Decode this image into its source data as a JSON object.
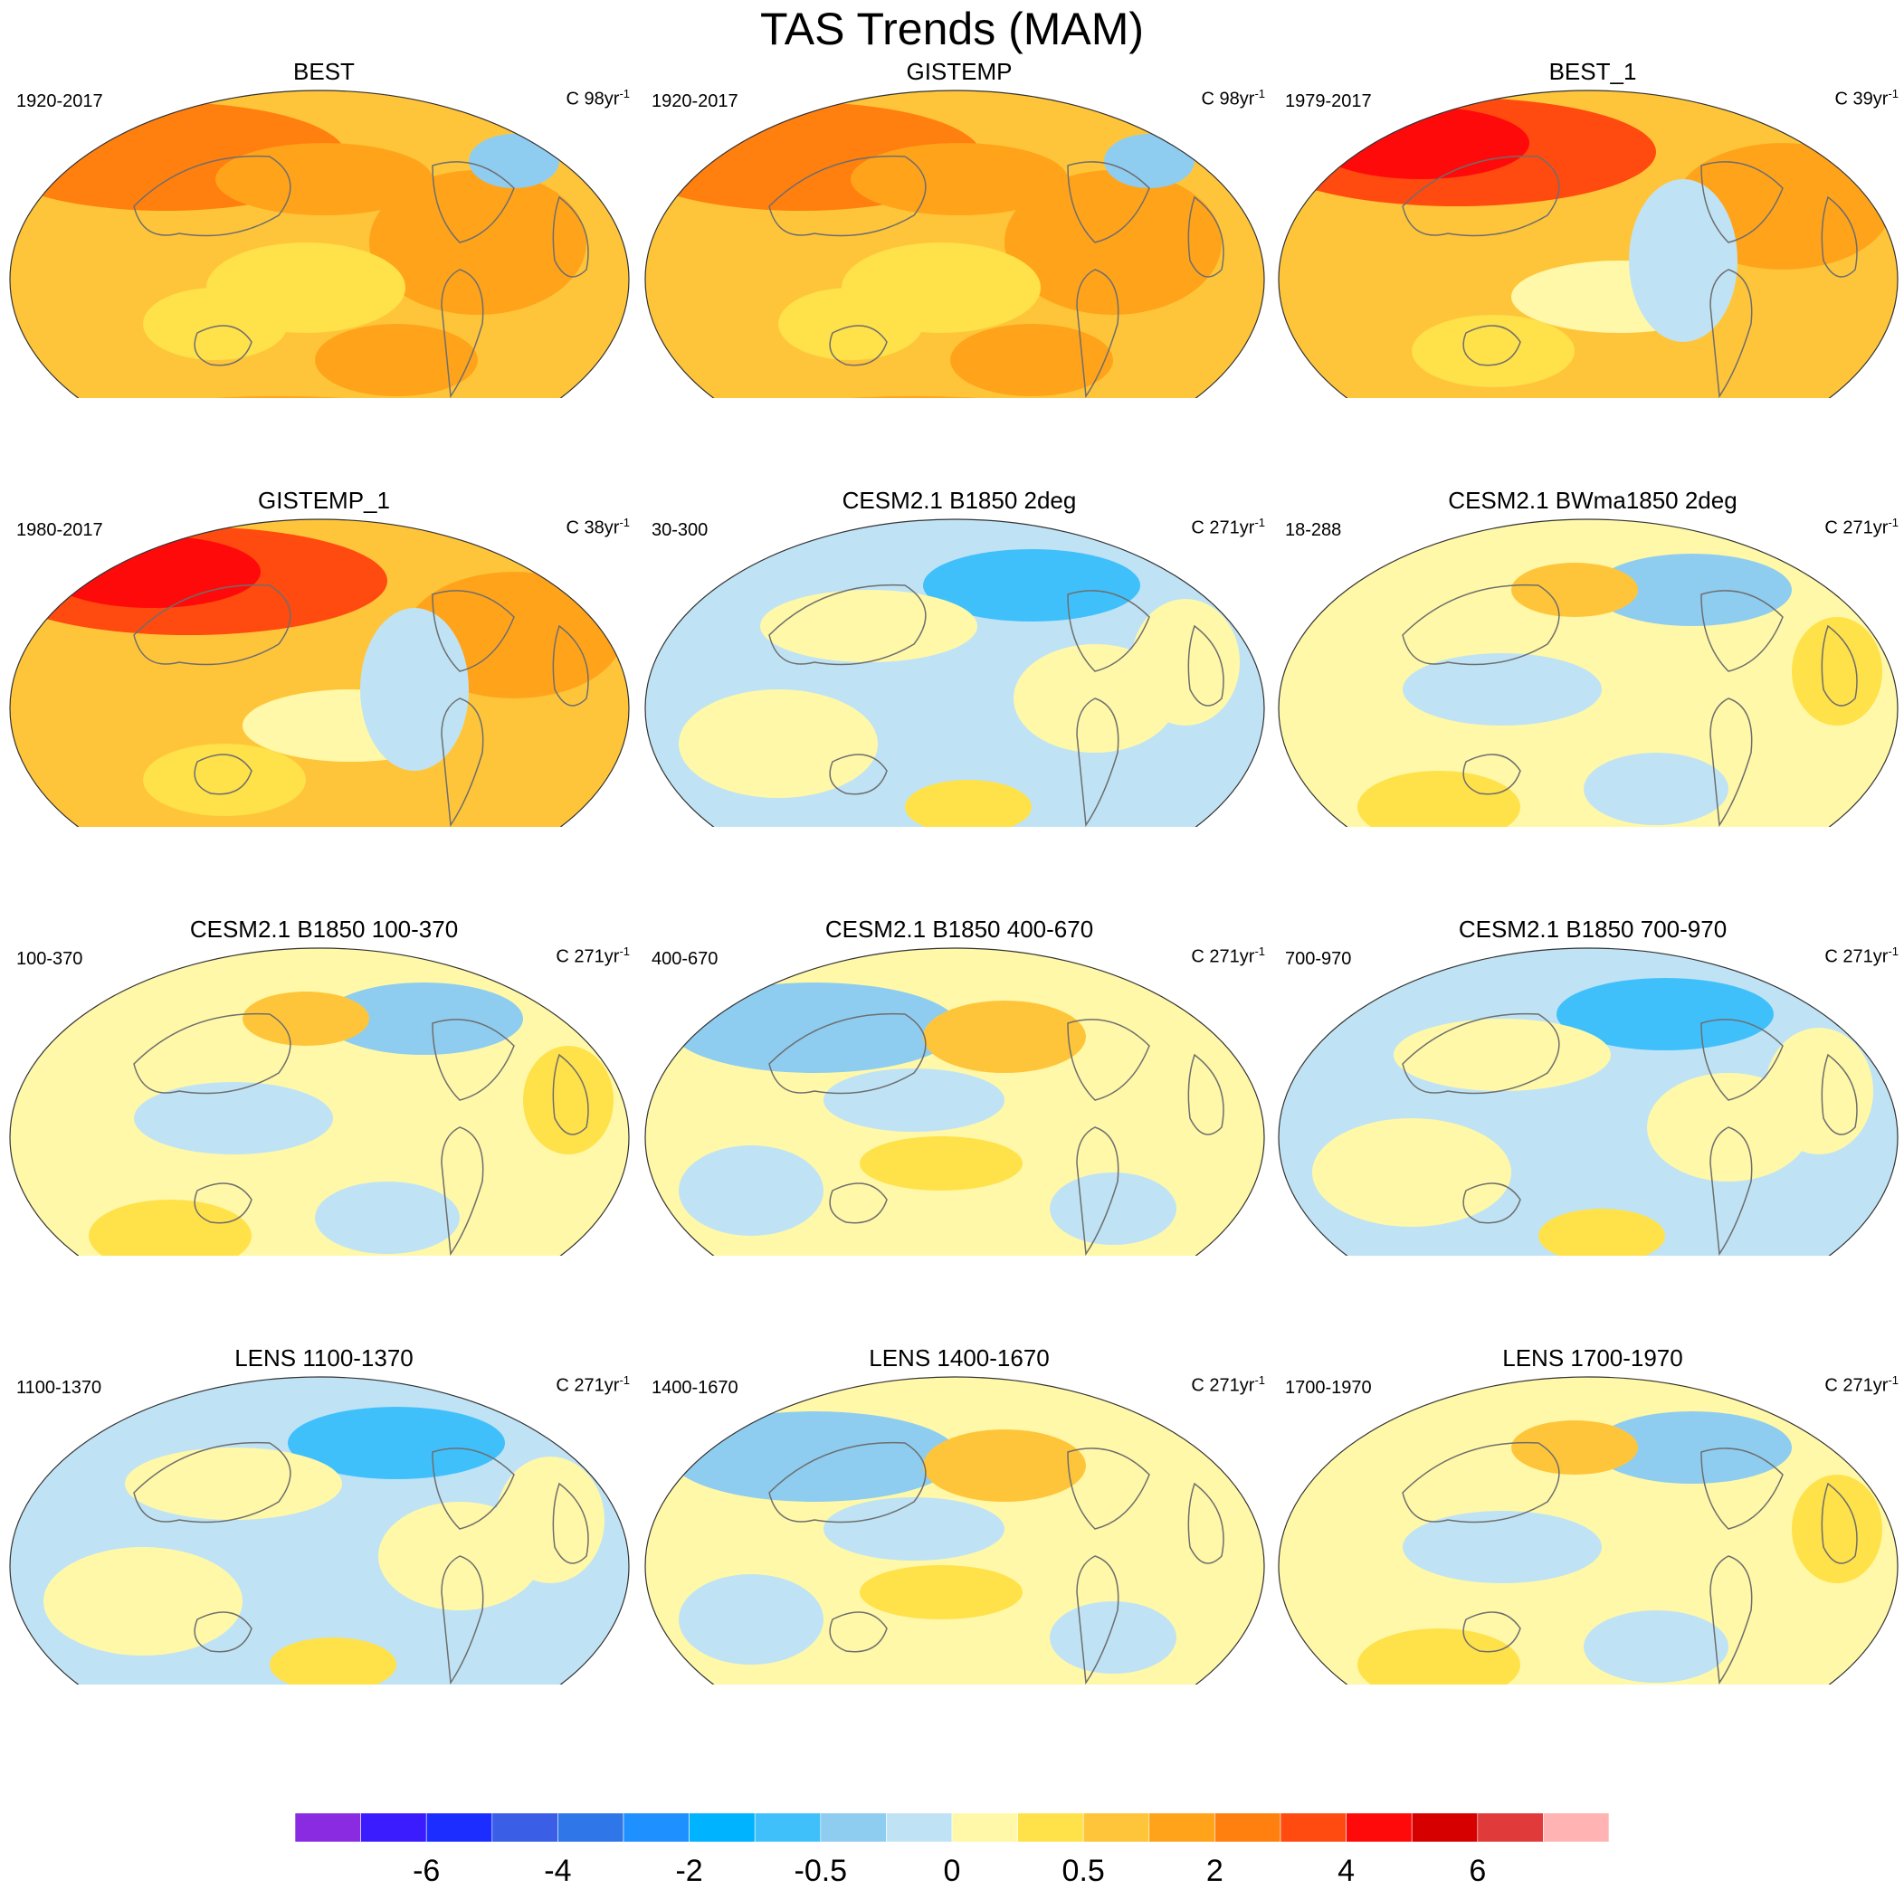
{
  "title": "TAS Trends (MAM)",
  "panels": [
    {
      "title": "BEST",
      "period": "1920-2017",
      "units_prefix": "C 98yr",
      "units_sup": "-1",
      "pattern": "warm_obs",
      "polar_hot": true
    },
    {
      "title": "GISTEMP",
      "period": "1920-2017",
      "units_prefix": "C 98yr",
      "units_sup": "-1",
      "pattern": "warm_obs",
      "polar_hot": true
    },
    {
      "title": "BEST_1",
      "period": "1979-2017",
      "units_prefix": "C 39yr",
      "units_sup": "-1",
      "pattern": "warm_recent",
      "polar_hot": false
    },
    {
      "title": "GISTEMP_1",
      "period": "1980-2017",
      "units_prefix": "C 38yr",
      "units_sup": "-1",
      "pattern": "warm_recent",
      "polar_hot": false
    },
    {
      "title": "CESM2.1 B1850 2deg",
      "period": "30-300",
      "units_prefix": "C 271yr",
      "units_sup": "-1",
      "pattern": "cool_model",
      "polar_hot": false
    },
    {
      "title": "CESM2.1 BWma1850 2deg",
      "period": "18-288",
      "units_prefix": "C 271yr",
      "units_sup": "-1",
      "pattern": "mild_model",
      "polar_hot": false
    },
    {
      "title": "CESM2.1 B1850 100-370",
      "period": "100-370",
      "units_prefix": "C 271yr",
      "units_sup": "-1",
      "pattern": "mild_model",
      "polar_hot": false
    },
    {
      "title": "CESM2.1 B1850 400-670",
      "period": "400-670",
      "units_prefix": "C 271yr",
      "units_sup": "-1",
      "pattern": "mixed_model",
      "polar_hot": false
    },
    {
      "title": "CESM2.1 B1850 700-970",
      "period": "700-970",
      "units_prefix": "C 271yr",
      "units_sup": "-1",
      "pattern": "cool_model",
      "polar_hot": false
    },
    {
      "title": "LENS 1100-1370",
      "period": "1100-1370",
      "units_prefix": "C 271yr",
      "units_sup": "-1",
      "pattern": "cool_model",
      "polar_hot": false
    },
    {
      "title": "LENS 1400-1670",
      "period": "1400-1670",
      "units_prefix": "C 271yr",
      "units_sup": "-1",
      "pattern": "mixed_model",
      "polar_hot": false
    },
    {
      "title": "LENS 1700-1970",
      "period": "1700-1970",
      "units_prefix": "C 271yr",
      "units_sup": "-1",
      "pattern": "mild_model",
      "polar_hot": false
    }
  ],
  "colorbar": {
    "colors": [
      "#8a2be2",
      "#3b1cff",
      "#1c2eff",
      "#3a5ee6",
      "#2f77e8",
      "#1e90ff",
      "#00b3ff",
      "#40c0fa",
      "#8ecdf0",
      "#bfe3f5",
      "#fff8a8",
      "#ffe14a",
      "#ffc53a",
      "#ffa31a",
      "#ff7f0f",
      "#ff4a10",
      "#ff0a0a",
      "#d60000",
      "#e03a3a",
      "#ffb3b3"
    ],
    "labels": [
      {
        "text": "-6",
        "boundary": 2
      },
      {
        "text": "-4",
        "boundary": 4
      },
      {
        "text": "-2",
        "boundary": 6
      },
      {
        "text": "-0.5",
        "boundary": 8
      },
      {
        "text": "0",
        "boundary": 10
      },
      {
        "text": "0.5",
        "boundary": 12
      },
      {
        "text": "2",
        "boundary": 14
      },
      {
        "text": "4",
        "boundary": 16
      },
      {
        "text": "6",
        "boundary": 18
      }
    ]
  }
}
